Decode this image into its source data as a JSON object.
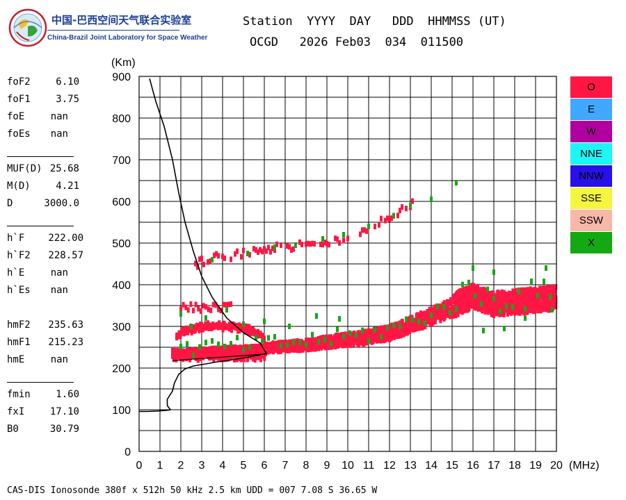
{
  "logo": {
    "title_cn": "中国-巴西空间天气联合实验室",
    "title_en": "China-Brazil Joint Laboratory for Space Weather"
  },
  "header": {
    "line1": "Station  YYYY  DAY   DDD  HHMMSS (UT)",
    "line2": "OCGD   2026 Feb03  034  011500"
  },
  "params": {
    "group1": [
      {
        "label": "foF2",
        "value": "6.10"
      },
      {
        "label": "foF1",
        "value": "3.75"
      },
      {
        "label": "foE",
        "value": "nan"
      },
      {
        "label": "foEs",
        "value": "nan"
      }
    ],
    "group2": [
      {
        "label": "MUF(D)",
        "value": "25.68"
      },
      {
        "label": "M(D)",
        "value": "4.21"
      },
      {
        "label": "D",
        "value": "3000.0"
      }
    ],
    "group3": [
      {
        "label": "h`F",
        "value": "222.00"
      },
      {
        "label": "h`F2",
        "value": "228.57"
      },
      {
        "label": "h`E",
        "value": "nan"
      },
      {
        "label": "h`Es",
        "value": "nan"
      }
    ],
    "group4": [
      {
        "label": "hmF2",
        "value": "235.63"
      },
      {
        "label": "hmF1",
        "value": "215.23"
      },
      {
        "label": "hmE",
        "value": "nan"
      }
    ],
    "group5": [
      {
        "label": "fmin",
        "value": "1.60"
      },
      {
        "label": "fxI",
        "value": "17.10"
      },
      {
        "label": "B0",
        "value": "30.79"
      }
    ]
  },
  "legend": [
    {
      "label": "O",
      "color": "#ff1744"
    },
    {
      "label": "E",
      "color": "#40a8ff"
    },
    {
      "label": "W",
      "color": "#b000a0"
    },
    {
      "label": "NNE",
      "color": "#1ef5f5"
    },
    {
      "label": "NNW",
      "color": "#2a10e8"
    },
    {
      "label": "SSE",
      "color": "#f5f540"
    },
    {
      "label": "SSW",
      "color": "#f8b8a8"
    },
    {
      "label": "X",
      "color": "#14a814"
    }
  ],
  "footer": "CAS-DIS Ionosonde 380f x 512h 50 kHz 2.5 km UDD = 007 7.08 S 36.65 W",
  "chart_data": {
    "type": "scatter",
    "xlabel": "(MHz)",
    "ylabel": "(Km)",
    "xlim": [
      0,
      20
    ],
    "ylim": [
      0,
      900
    ],
    "xticks": [
      0,
      1,
      2,
      3,
      4,
      5,
      6,
      7,
      8,
      9,
      10,
      11,
      12,
      13,
      14,
      15,
      16,
      17,
      18,
      19,
      20
    ],
    "yticks": [
      0,
      100,
      200,
      300,
      400,
      500,
      600,
      700,
      800,
      900
    ],
    "grid": true,
    "legend_position": "right",
    "series": [
      {
        "name": "O",
        "color": "#ff1744",
        "trace": [
          [
            1.6,
            235
          ],
          [
            2.0,
            232
          ],
          [
            2.5,
            234
          ],
          [
            3.0,
            236
          ],
          [
            3.5,
            238
          ],
          [
            4.0,
            240
          ],
          [
            4.5,
            241
          ],
          [
            5.0,
            242
          ],
          [
            5.5,
            243
          ],
          [
            6.0,
            245
          ],
          [
            7.0,
            248
          ],
          [
            8.0,
            252
          ],
          [
            9.0,
            258
          ],
          [
            10.0,
            264
          ],
          [
            11.0,
            270
          ],
          [
            12.0,
            280
          ],
          [
            13.0,
            298
          ],
          [
            14.0,
            318
          ],
          [
            15.0,
            340
          ],
          [
            16.0,
            365
          ],
          [
            17.0,
            345
          ],
          [
            18.0,
            350
          ],
          [
            19.0,
            355
          ],
          [
            20.0,
            360
          ]
        ],
        "trace_f1": [
          [
            1.8,
            280
          ],
          [
            2.5,
            292
          ],
          [
            3.0,
            298
          ],
          [
            3.5,
            302
          ],
          [
            4.0,
            300
          ],
          [
            4.5,
            298
          ],
          [
            5.0,
            295
          ],
          [
            5.5,
            288
          ],
          [
            6.0,
            275
          ]
        ],
        "trace_multi": [
          [
            2.5,
            445
          ],
          [
            3.5,
            465
          ],
          [
            4.5,
            470
          ],
          [
            6.0,
            485
          ],
          [
            7.0,
            490
          ],
          [
            8.0,
            495
          ],
          [
            9.0,
            500
          ],
          [
            10.0,
            515
          ],
          [
            11.0,
            540
          ],
          [
            12.0,
            565
          ],
          [
            13.0,
            590
          ],
          [
            13.5,
            600
          ]
        ]
      },
      {
        "name": "X",
        "color": "#14a814",
        "points": [
          [
            3.5,
            460
          ],
          [
            5.2,
            475
          ],
          [
            6.5,
            490
          ],
          [
            7.5,
            495
          ],
          [
            8.8,
            510
          ],
          [
            9.8,
            520
          ],
          [
            11.0,
            540
          ],
          [
            12.2,
            565
          ],
          [
            13.0,
            590
          ],
          [
            14.0,
            605
          ],
          [
            15.2,
            645
          ],
          [
            2.0,
            330
          ],
          [
            2.5,
            300
          ],
          [
            3.2,
            320
          ],
          [
            4.2,
            340
          ],
          [
            5.0,
            305
          ],
          [
            6.0,
            312
          ],
          [
            7.2,
            300
          ],
          [
            8.5,
            325
          ],
          [
            9.6,
            318
          ],
          [
            16.0,
            440
          ],
          [
            17.0,
            430
          ],
          [
            19.5,
            440
          ],
          [
            16.5,
            290
          ],
          [
            17.5,
            295
          ],
          [
            18.5,
            320
          ],
          [
            19.8,
            340
          ]
        ]
      }
    ],
    "profile": [
      [
        0.0,
        96
      ],
      [
        0.4,
        96
      ],
      [
        0.9,
        97
      ],
      [
        1.2,
        98
      ],
      [
        1.4,
        99
      ],
      [
        1.5,
        100
      ],
      [
        1.35,
        110
      ],
      [
        1.35,
        125
      ],
      [
        1.6,
        145
      ],
      [
        1.7,
        165
      ],
      [
        1.9,
        185
      ],
      [
        2.2,
        198
      ],
      [
        2.6,
        205
      ],
      [
        3.2,
        210
      ],
      [
        3.75,
        215
      ],
      [
        4.5,
        220
      ],
      [
        5.2,
        226
      ],
      [
        5.8,
        232
      ],
      [
        6.1,
        235
      ],
      [
        5.8,
        260
      ],
      [
        5.0,
        285
      ],
      [
        4.2,
        320
      ],
      [
        3.5,
        370
      ],
      [
        3.0,
        420
      ],
      [
        2.6,
        480
      ],
      [
        2.2,
        550
      ],
      [
        1.9,
        620
      ],
      [
        1.6,
        700
      ],
      [
        1.2,
        780
      ],
      [
        0.8,
        840
      ],
      [
        0.5,
        895
      ]
    ]
  }
}
